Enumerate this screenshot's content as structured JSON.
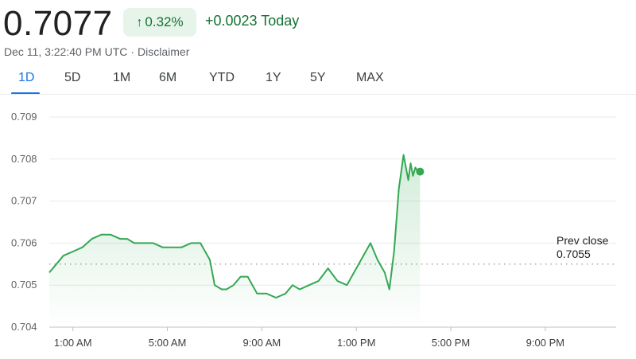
{
  "quote": {
    "price": "0.7077",
    "percent_change": "0.32%",
    "change_text": "+0.0023 Today",
    "timestamp": "Dec 11, 3:22:40 PM UTC",
    "separator": "·",
    "disclaimer": "Disclaimer"
  },
  "tabs": [
    {
      "label": "1D",
      "active": true
    },
    {
      "label": "5D",
      "active": false
    },
    {
      "label": "1M",
      "active": false
    },
    {
      "label": "6M",
      "active": false
    },
    {
      "label": "YTD",
      "active": false
    },
    {
      "label": "1Y",
      "active": false
    },
    {
      "label": "5Y",
      "active": false
    },
    {
      "label": "MAX",
      "active": false
    }
  ],
  "colors": {
    "positive": "#34a853",
    "positive_text": "#137333",
    "badge_bg": "#e6f4ea",
    "accent": "#1a73e8",
    "grid": "#e8eaed"
  },
  "chart_data": {
    "type": "area",
    "y_ticks": [
      "0.709",
      "0.708",
      "0.707",
      "0.706",
      "0.705",
      "0.704"
    ],
    "y_tick_values": [
      0.709,
      0.708,
      0.707,
      0.706,
      0.705,
      0.704
    ],
    "ylim": [
      0.704,
      0.709
    ],
    "x_ticks": [
      "1:00 AM",
      "5:00 AM",
      "9:00 AM",
      "1:00 PM",
      "5:00 PM",
      "9:00 PM"
    ],
    "x_tick_hours": [
      1,
      5,
      9,
      13,
      17,
      21
    ],
    "xlim_hours": [
      0,
      24
    ],
    "prev_close_label": "Prev close",
    "prev_close_value": "0.7055",
    "prev_close": 0.7055,
    "last_value": 0.7077,
    "grid": true,
    "series": [
      {
        "hours": [
          0,
          0.3,
          0.6,
          1.0,
          1.4,
          1.8,
          2.2,
          2.6,
          3.0,
          3.3,
          3.6,
          4.0,
          4.4,
          4.8,
          5.2,
          5.6,
          6.0,
          6.4,
          6.8,
          7.0,
          7.3,
          7.5,
          7.8,
          8.1,
          8.4,
          8.8,
          9.2,
          9.6,
          10.0,
          10.3,
          10.6,
          11.0,
          11.4,
          11.8,
          12.2,
          12.6,
          12.8,
          13.0,
          13.3,
          13.6,
          13.9,
          14.2,
          14.4,
          14.6,
          14.8,
          14.9,
          15.0,
          15.1,
          15.2,
          15.3,
          15.4,
          15.5,
          15.6,
          15.7
        ],
        "values": [
          0.7053,
          0.7055,
          0.7057,
          0.7058,
          0.7059,
          0.7061,
          0.7062,
          0.7062,
          0.7061,
          0.7061,
          0.706,
          0.706,
          0.706,
          0.7059,
          0.7059,
          0.7059,
          0.706,
          0.706,
          0.7056,
          0.705,
          0.7049,
          0.7049,
          0.705,
          0.7052,
          0.7052,
          0.7048,
          0.7048,
          0.7047,
          0.7048,
          0.705,
          0.7049,
          0.705,
          0.7051,
          0.7054,
          0.7051,
          0.705,
          0.7052,
          0.7054,
          0.7057,
          0.706,
          0.7056,
          0.7053,
          0.7049,
          0.7058,
          0.7073,
          0.7077,
          0.7081,
          0.7078,
          0.7075,
          0.7079,
          0.7076,
          0.7078,
          0.7077,
          0.7077
        ]
      }
    ]
  }
}
